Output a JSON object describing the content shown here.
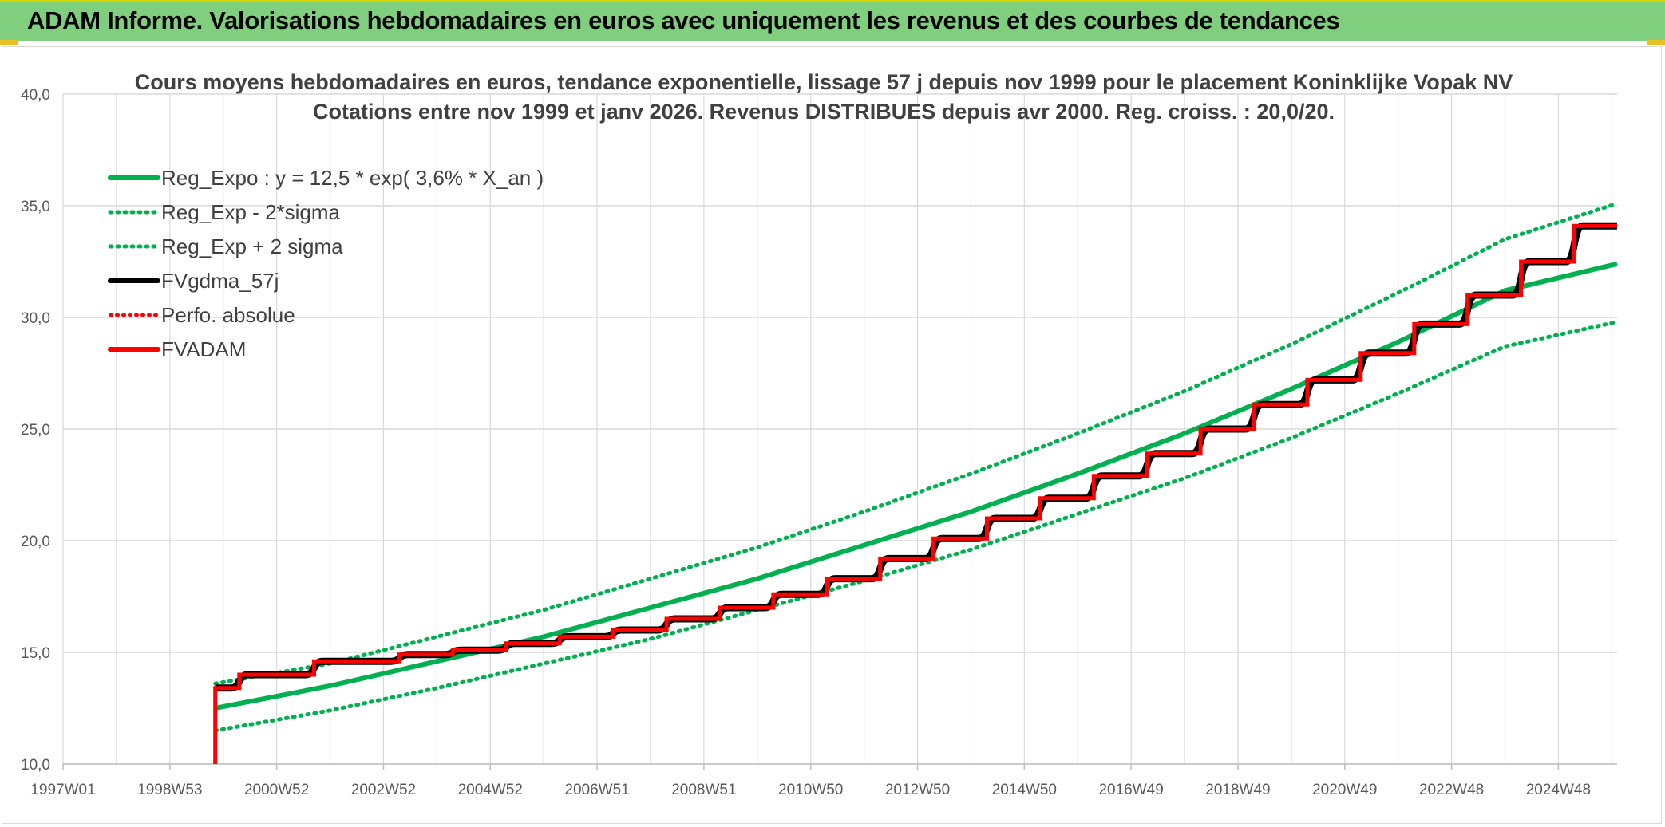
{
  "banner": {
    "title": "ADAM Informe. Valorisations hebdomadaires en euros avec uniquement les revenus et des courbes de tendances"
  },
  "colors": {
    "banner_bg": "#7fcf7f",
    "reg_green": "#00b050",
    "fv_black": "#000000",
    "adam_red": "#ff0000",
    "grid": "#d9d9d9"
  },
  "chart_data": {
    "type": "line",
    "title": [
      "Cours moyens hebdomadaires en euros, tendance exponentielle, lissage 57 j depuis nov 1999 pour le placement Koninklijke Vopak NV",
      "Cotations entre nov 1999 et janv 2026. Revenus DISTRIBUES depuis avr 2000. Reg. croiss. : 20,0/20."
    ],
    "x_tick_labels": [
      "1997W01",
      "1998W53",
      "2000W52",
      "2002W52",
      "2004W52",
      "2006W51",
      "2008W51",
      "2010W50",
      "2012W50",
      "2014W50",
      "2016W49",
      "2018W49",
      "2020W49",
      "2022W48",
      "2024W48"
    ],
    "x_range_years": [
      1997.0,
      2026.1
    ],
    "ylim": [
      10,
      40
    ],
    "y_ticks": [
      "10,0",
      "15,0",
      "20,0",
      "25,0",
      "30,0",
      "35,0",
      "40,0"
    ],
    "grid": true,
    "legend_position": "top-left",
    "legend": [
      {
        "label": "Reg_Expo : y = 12,5 * exp( 3,6% *  X_an )",
        "style": "solid-green"
      },
      {
        "label": "Reg_Exp - 2*sigma",
        "style": "dotted-green"
      },
      {
        "label": "Reg_Exp + 2 sigma",
        "style": "dotted-green"
      },
      {
        "label": "FVgdma_57j",
        "style": "solid-black"
      },
      {
        "label": "Perfo. absolue",
        "style": "dotted-red"
      },
      {
        "label": "FVADAM",
        "style": "solid-red"
      }
    ],
    "series": [
      {
        "name": "Reg_Expo : y = 12,5 * exp( 3,6% *  X_an )",
        "x": [
          1999.85,
          2002.0,
          2004.0,
          2006.0,
          2008.0,
          2010.0,
          2012.0,
          2014.0,
          2016.0,
          2018.0,
          2020.0,
          2022.0,
          2024.0,
          2026.1
        ],
        "y": [
          12.5,
          13.5,
          14.6,
          15.7,
          17.0,
          18.3,
          19.8,
          21.3,
          23.0,
          24.8,
          26.8,
          28.9,
          31.2,
          32.4
        ]
      },
      {
        "name": "Reg_Exp - 2*sigma",
        "x": [
          1999.85,
          2002.0,
          2004.0,
          2006.0,
          2008.0,
          2010.0,
          2012.0,
          2014.0,
          2016.0,
          2018.0,
          2020.0,
          2022.0,
          2024.0,
          2026.1
        ],
        "y": [
          11.5,
          12.4,
          13.4,
          14.5,
          15.6,
          16.9,
          18.2,
          19.6,
          21.2,
          22.8,
          24.6,
          26.6,
          28.7,
          29.8
        ]
      },
      {
        "name": "Reg_Exp + 2 sigma",
        "x": [
          1999.85,
          2002.0,
          2004.0,
          2006.0,
          2008.0,
          2010.0,
          2012.0,
          2014.0,
          2016.0,
          2018.0,
          2020.0,
          2022.0,
          2024.0,
          2026.1
        ],
        "y": [
          13.6,
          14.5,
          15.7,
          16.9,
          18.3,
          19.7,
          21.3,
          23.0,
          24.8,
          26.7,
          28.8,
          31.1,
          33.5,
          35.1
        ]
      },
      {
        "name": "FVADAM",
        "x": [
          1999.85,
          1999.85,
          2000.3,
          2000.3,
          2001.7,
          2001.7,
          2003.3,
          2003.3,
          2004.3,
          2004.3,
          2005.3,
          2005.3,
          2006.3,
          2006.3,
          2007.3,
          2007.3,
          2008.3,
          2008.3,
          2009.3,
          2009.3,
          2010.3,
          2010.3,
          2011.3,
          2011.3,
          2012.3,
          2012.3,
          2013.3,
          2013.3,
          2014.3,
          2014.3,
          2015.3,
          2015.3,
          2016.3,
          2016.3,
          2017.3,
          2017.3,
          2018.3,
          2018.3,
          2019.3,
          2019.3,
          2020.3,
          2020.3,
          2021.3,
          2021.3,
          2022.3,
          2022.3,
          2023.3,
          2023.3,
          2024.3,
          2024.3,
          2025.3,
          2025.3,
          2026.1
        ],
        "y": [
          10.0,
          13.4,
          13.4,
          14.0,
          14.0,
          14.6,
          14.6,
          14.9,
          14.9,
          15.1,
          15.1,
          15.4,
          15.4,
          15.7,
          15.7,
          16.0,
          16.0,
          16.5,
          16.5,
          17.0,
          17.0,
          17.6,
          17.6,
          18.3,
          18.3,
          19.2,
          19.2,
          20.1,
          20.1,
          21.0,
          21.0,
          21.9,
          21.9,
          22.9,
          22.9,
          23.9,
          23.9,
          25.0,
          25.0,
          26.1,
          26.1,
          27.2,
          27.2,
          28.4,
          28.4,
          29.7,
          29.7,
          31.0,
          31.0,
          32.5,
          32.5,
          34.1,
          34.1
        ]
      },
      {
        "name": "FVgdma_57j",
        "note_render": "smoothed version of FVADAM steps"
      }
    ]
  }
}
